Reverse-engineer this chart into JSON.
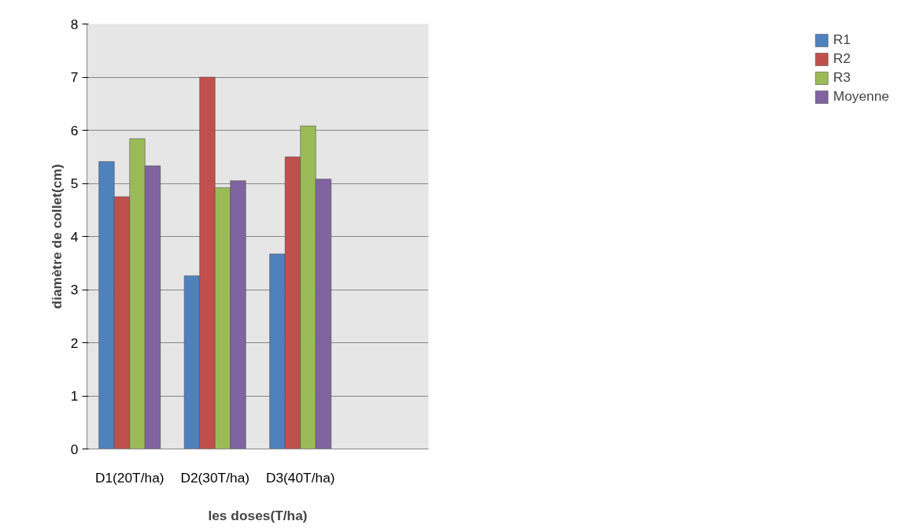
{
  "chart_data": {
    "type": "bar",
    "categories": [
      "D1(20T/ha)",
      "D2(30T/ha)",
      "D3(40T/ha)",
      null
    ],
    "xlabel": "les doses(T/ha)",
    "ylabel": "diamètre de collet(cm)",
    "series": [
      {
        "name": "R1",
        "color": "#4f81bd",
        "values": [
          5.41,
          3.26,
          3.67,
          null
        ]
      },
      {
        "name": "R2",
        "color": "#c0504d",
        "values": [
          4.75,
          7.0,
          5.5,
          null
        ]
      },
      {
        "name": "R3",
        "color": "#9bbb59",
        "values": [
          5.84,
          4.92,
          6.08,
          null
        ]
      },
      {
        "name": "Moyenne",
        "color": "#8064a2",
        "values": [
          5.33,
          5.05,
          5.08,
          null
        ]
      }
    ],
    "ylim": [
      0,
      8
    ],
    "yticks": [
      0,
      1,
      2,
      3,
      4,
      5,
      6,
      7,
      8
    ],
    "grid": "y",
    "legend": "right"
  }
}
